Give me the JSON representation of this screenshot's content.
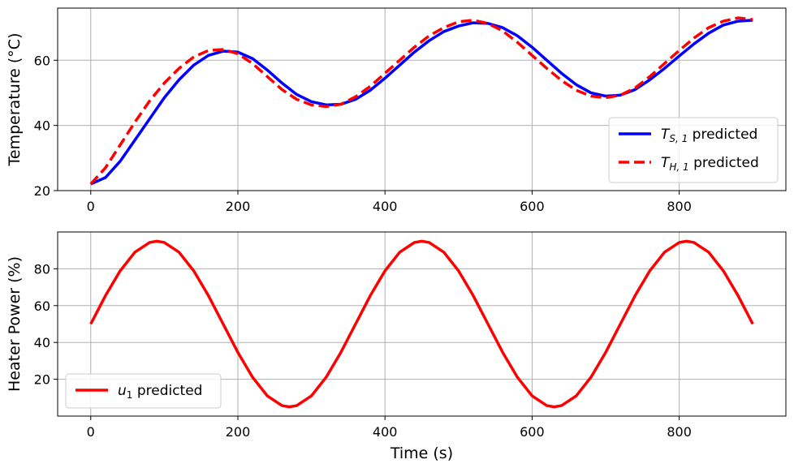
{
  "chart_data": [
    {
      "type": "line",
      "ylabel": "Temperature (°C)",
      "xlabel": "",
      "xlim": [
        -45,
        945
      ],
      "ylim": [
        20,
        76
      ],
      "xticks": [
        0,
        200,
        400,
        600,
        800
      ],
      "yticks": [
        20,
        40,
        60
      ],
      "grid": true,
      "legend_position": "lower-right",
      "series": [
        {
          "name": "T_S,1 predicted",
          "label_main": "T",
          "label_sub": "S, 1",
          "label_rest": " predicted",
          "color": "#0000ff",
          "style": "solid",
          "x": [
            0,
            20,
            40,
            60,
            80,
            100,
            120,
            140,
            160,
            180,
            200,
            220,
            240,
            260,
            280,
            300,
            320,
            340,
            360,
            380,
            400,
            420,
            440,
            460,
            480,
            500,
            520,
            540,
            560,
            580,
            600,
            620,
            640,
            660,
            680,
            700,
            720,
            740,
            760,
            780,
            800,
            820,
            840,
            860,
            880,
            900
          ],
          "y": [
            22.0,
            24.0,
            29.0,
            35.5,
            42.0,
            48.5,
            54.0,
            58.5,
            61.5,
            62.8,
            62.5,
            60.5,
            57.0,
            53.0,
            49.5,
            47.3,
            46.3,
            46.5,
            48.0,
            50.8,
            54.5,
            58.5,
            62.5,
            66.0,
            68.8,
            70.5,
            71.5,
            71.3,
            70.0,
            67.5,
            64.0,
            60.0,
            56.0,
            52.5,
            50.0,
            49.0,
            49.3,
            51.0,
            54.0,
            57.5,
            61.3,
            65.0,
            68.3,
            70.8,
            72.0,
            72.3
          ]
        },
        {
          "name": "T_H,1 predicted",
          "label_main": "T",
          "label_sub": "H, 1",
          "label_rest": " predicted",
          "color": "#ff0000",
          "style": "dashed",
          "x": [
            0,
            20,
            40,
            60,
            80,
            100,
            120,
            140,
            160,
            180,
            200,
            220,
            240,
            260,
            280,
            300,
            320,
            340,
            360,
            380,
            400,
            420,
            440,
            460,
            480,
            500,
            520,
            540,
            560,
            580,
            600,
            620,
            640,
            660,
            680,
            700,
            720,
            740,
            760,
            780,
            800,
            820,
            840,
            860,
            880,
            900
          ],
          "y": [
            22.0,
            27.0,
            34.0,
            41.0,
            47.5,
            53.0,
            57.5,
            61.0,
            63.0,
            63.3,
            62.0,
            59.0,
            55.0,
            51.0,
            48.0,
            46.3,
            45.8,
            46.5,
            48.8,
            52.0,
            56.0,
            60.0,
            64.0,
            67.5,
            70.0,
            71.8,
            72.3,
            71.3,
            69.0,
            65.5,
            61.5,
            57.5,
            53.8,
            50.8,
            49.0,
            48.5,
            49.3,
            51.5,
            55.0,
            59.0,
            63.0,
            66.8,
            70.0,
            72.0,
            73.0,
            72.5
          ]
        }
      ]
    },
    {
      "type": "line",
      "ylabel": "Heater Power (%)",
      "xlabel": "Time (s)",
      "xlim": [
        -45,
        945
      ],
      "ylim": [
        0,
        100
      ],
      "xticks": [
        0,
        200,
        400,
        600,
        800
      ],
      "yticks": [
        20,
        40,
        60,
        80
      ],
      "grid": true,
      "legend_position": "lower-left",
      "series": [
        {
          "name": "u_1 predicted",
          "label_main": "u",
          "label_sub": "1",
          "label_rest": " predicted",
          "color": "#ff0000",
          "style": "solid",
          "x": [
            0,
            20,
            40,
            60,
            80,
            90,
            100,
            120,
            140,
            160,
            180,
            200,
            220,
            240,
            260,
            270,
            280,
            300,
            320,
            340,
            360,
            380,
            400,
            420,
            440,
            450,
            460,
            480,
            500,
            520,
            540,
            560,
            580,
            600,
            620,
            630,
            640,
            660,
            680,
            700,
            720,
            740,
            760,
            780,
            800,
            810,
            820,
            840,
            860,
            880,
            900
          ],
          "y": [
            50.0,
            65.4,
            78.9,
            89.0,
            94.3,
            95.0,
            94.3,
            89.0,
            78.9,
            65.4,
            50.0,
            34.6,
            21.1,
            11.0,
            5.7,
            5.0,
            5.7,
            11.0,
            21.1,
            34.6,
            50.0,
            65.4,
            78.9,
            89.0,
            94.3,
            95.0,
            94.3,
            89.0,
            78.9,
            65.4,
            50.0,
            34.6,
            21.1,
            11.0,
            5.7,
            5.0,
            5.7,
            11.0,
            21.1,
            34.6,
            50.0,
            65.4,
            78.9,
            89.0,
            94.3,
            95.0,
            94.3,
            89.0,
            78.9,
            65.4,
            50.0
          ]
        }
      ]
    }
  ]
}
